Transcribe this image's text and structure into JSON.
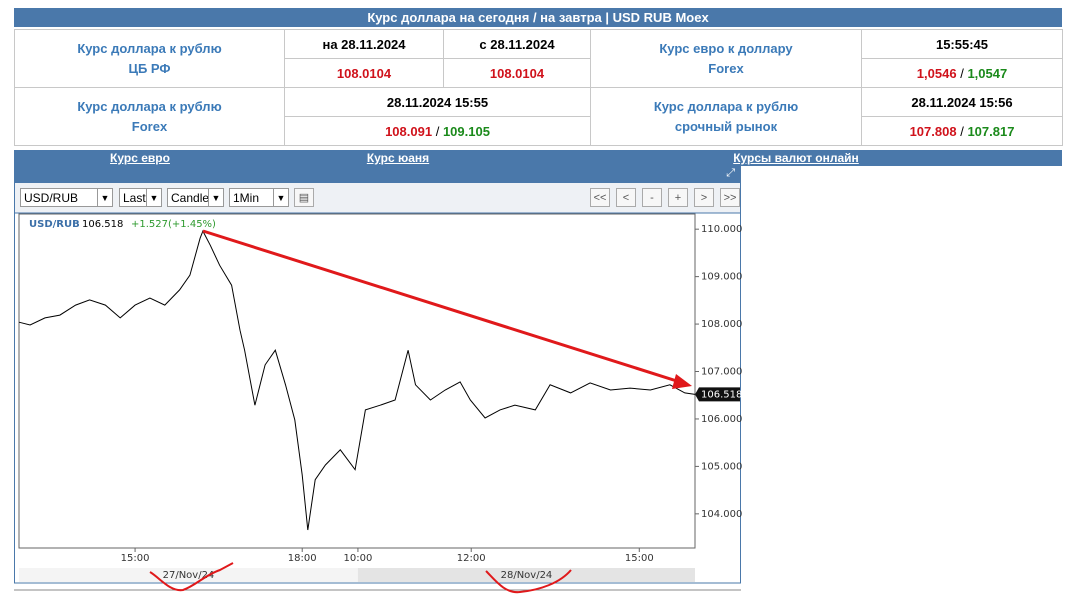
{
  "header": {
    "title": "Курс доллара на сегодня / на завтра | USD RUB Moex"
  },
  "separator": "/",
  "table": {
    "cbr": {
      "label": [
        "Курс доллара к рублю",
        "ЦБ РФ"
      ],
      "cols": [
        {
          "head": "на 28.11.2024",
          "value": "108.0104"
        },
        {
          "head": "с 28.11.2024",
          "value": "108.0104"
        }
      ]
    },
    "eur_forex": {
      "label": [
        "Курс евро к доллару",
        "Forex"
      ],
      "time": "15:55:45",
      "bid": "1,0546",
      "ask": "1,0547"
    },
    "usd_forex": {
      "label": [
        "Курс доллара к рублю",
        "Forex"
      ],
      "time": "28.11.2024 15:55",
      "bid": "108.091",
      "ask": "109.105"
    },
    "usd_futures": {
      "label": [
        "Курс доллара к рублю",
        "срочный рынок"
      ],
      "time": "28.11.2024 15:56",
      "bid": "107.808",
      "ask": "107.817"
    }
  },
  "links": [
    "Курс евро",
    "Курс юаня",
    "Курсы валют онлайн"
  ],
  "widget": {
    "selects": [
      "USD/RUB",
      "Last",
      "Candle",
      "1Min"
    ],
    "buttons": [
      "<<",
      "<",
      "-",
      "+",
      ">",
      ">>"
    ],
    "legend": {
      "symbol": "USD/RUB",
      "last": "106.518",
      "change": "+1.527(+1.45%)"
    },
    "dates": [
      "27/Nov/24",
      "28/Nov/24"
    ],
    "chart_data": {
      "type": "line",
      "color": "#000000",
      "x": [
        0,
        12,
        28,
        44,
        61,
        76,
        93,
        109,
        125,
        141,
        157,
        173,
        184,
        195,
        198,
        206,
        216,
        229,
        238,
        243,
        254,
        265,
        276,
        287,
        297,
        305,
        311,
        319,
        330,
        346,
        362,
        373,
        389,
        405,
        419,
        427,
        443,
        459,
        475,
        486,
        502,
        518,
        534,
        556,
        572,
        594,
        615,
        637,
        658,
        680,
        701,
        717,
        728
      ],
      "values": [
        108.04,
        107.98,
        108.13,
        108.19,
        108.4,
        108.51,
        108.4,
        108.13,
        108.4,
        108.55,
        108.4,
        108.72,
        109.03,
        109.81,
        109.96,
        109.66,
        109.24,
        108.82,
        107.87,
        107.45,
        106.29,
        107.14,
        107.45,
        106.72,
        105.98,
        104.82,
        103.66,
        104.72,
        105.03,
        105.35,
        104.93,
        106.19,
        106.29,
        106.4,
        107.45,
        106.72,
        106.4,
        106.61,
        106.78,
        106.4,
        106.02,
        106.19,
        106.29,
        106.19,
        106.72,
        106.55,
        106.76,
        106.61,
        106.65,
        106.61,
        106.72,
        106.55,
        106.518
      ],
      "xlim": [
        0,
        728
      ],
      "xticks": [
        {
          "value": 125,
          "label": "15:00"
        },
        {
          "value": 305,
          "label": "18:00"
        },
        {
          "value": 365,
          "label": "10:00"
        },
        {
          "value": 487,
          "label": "12:00"
        },
        {
          "value": 668,
          "label": "15:00"
        }
      ],
      "ylim": [
        103.28,
        110.32
      ],
      "yticks": [
        {
          "value": 110,
          "label": "110.000"
        },
        {
          "value": 109,
          "label": "109.000"
        },
        {
          "value": 108,
          "label": "108.000"
        },
        {
          "value": 107,
          "label": "107.000"
        },
        {
          "value": 106,
          "label": "106.000"
        },
        {
          "value": 105,
          "label": "105.000"
        },
        {
          "value": 104,
          "label": "104.000"
        }
      ]
    }
  }
}
